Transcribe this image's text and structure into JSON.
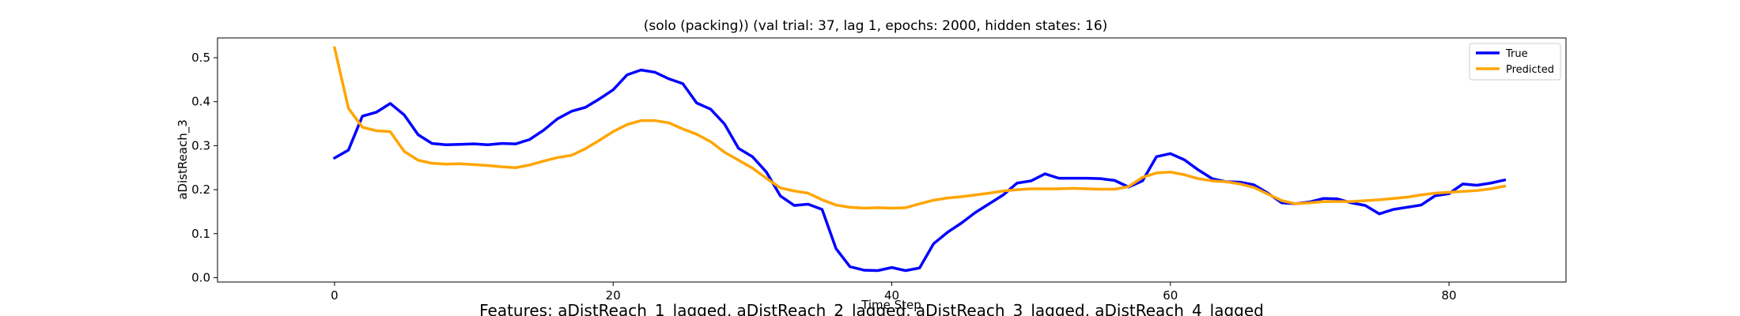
{
  "chart_data": {
    "type": "line",
    "title": "(solo (packing)) (val trial: 37, lag 1, epochs: 2000, hidden states: 16)",
    "xlabel": "Time Step",
    "ylabel": "aDistReach_3",
    "caption": "Features: aDistReach_1_lagged, aDistReach_2_lagged, aDistReach_3_lagged, aDistReach_4_lagged",
    "xlim": [
      -8.4,
      88.4
    ],
    "ylim": [
      -0.01,
      0.545
    ],
    "xticks": [
      0,
      20,
      40,
      60,
      80
    ],
    "xtick_labels": [
      "0",
      "20",
      "40",
      "60",
      "80"
    ],
    "yticks": [
      0.0,
      0.1,
      0.2,
      0.3,
      0.4,
      0.5
    ],
    "ytick_labels": [
      "0.0",
      "0.1",
      "0.2",
      "0.3",
      "0.4",
      "0.5"
    ],
    "grid": false,
    "legend_position": "top-right",
    "x": [
      0,
      1,
      2,
      3,
      4,
      5,
      6,
      7,
      8,
      9,
      10,
      11,
      12,
      13,
      14,
      15,
      16,
      17,
      18,
      19,
      20,
      21,
      22,
      23,
      24,
      25,
      26,
      27,
      28,
      29,
      30,
      31,
      32,
      33,
      34,
      35,
      36,
      37,
      38,
      39,
      40,
      41,
      42,
      43,
      44,
      45,
      46,
      47,
      48,
      49,
      50,
      51,
      52,
      53,
      54,
      55,
      56,
      57,
      58,
      59,
      60,
      61,
      62,
      63,
      64,
      65,
      66,
      67,
      68,
      69,
      70,
      71,
      72,
      73,
      74,
      75,
      76,
      77,
      78,
      79,
      80,
      81,
      82,
      83,
      84
    ],
    "series": [
      {
        "name": "True",
        "color": "#0000ff",
        "values": [
          0.272,
          0.29,
          0.367,
          0.376,
          0.396,
          0.37,
          0.325,
          0.305,
          0.302,
          0.303,
          0.304,
          0.302,
          0.305,
          0.304,
          0.314,
          0.335,
          0.361,
          0.378,
          0.387,
          0.406,
          0.427,
          0.461,
          0.472,
          0.467,
          0.452,
          0.441,
          0.397,
          0.383,
          0.349,
          0.294,
          0.275,
          0.24,
          0.186,
          0.164,
          0.167,
          0.155,
          0.066,
          0.025,
          0.017,
          0.016,
          0.023,
          0.016,
          0.022,
          0.077,
          0.103,
          0.124,
          0.148,
          0.168,
          0.188,
          0.215,
          0.22,
          0.236,
          0.226,
          0.226,
          0.226,
          0.225,
          0.221,
          0.206,
          0.22,
          0.275,
          0.282,
          0.268,
          0.245,
          0.225,
          0.218,
          0.217,
          0.211,
          0.192,
          0.17,
          0.168,
          0.172,
          0.18,
          0.179,
          0.17,
          0.164,
          0.145,
          0.155,
          0.16,
          0.165,
          0.186,
          0.191,
          0.213,
          0.21,
          0.215,
          0.222
        ]
      },
      {
        "name": "Predicted",
        "color": "#ffa500",
        "values": [
          0.523,
          0.385,
          0.342,
          0.334,
          0.332,
          0.287,
          0.267,
          0.26,
          0.258,
          0.259,
          0.257,
          0.255,
          0.252,
          0.25,
          0.256,
          0.265,
          0.273,
          0.278,
          0.293,
          0.312,
          0.332,
          0.348,
          0.357,
          0.357,
          0.352,
          0.338,
          0.326,
          0.309,
          0.285,
          0.267,
          0.249,
          0.226,
          0.204,
          0.197,
          0.192,
          0.177,
          0.165,
          0.16,
          0.158,
          0.159,
          0.158,
          0.159,
          0.168,
          0.176,
          0.181,
          0.184,
          0.188,
          0.192,
          0.197,
          0.2,
          0.202,
          0.202,
          0.202,
          0.203,
          0.202,
          0.201,
          0.201,
          0.207,
          0.228,
          0.238,
          0.24,
          0.234,
          0.225,
          0.22,
          0.218,
          0.213,
          0.205,
          0.19,
          0.175,
          0.168,
          0.17,
          0.173,
          0.173,
          0.173,
          0.175,
          0.177,
          0.18,
          0.183,
          0.188,
          0.192,
          0.194,
          0.196,
          0.198,
          0.202,
          0.208
        ]
      }
    ]
  }
}
